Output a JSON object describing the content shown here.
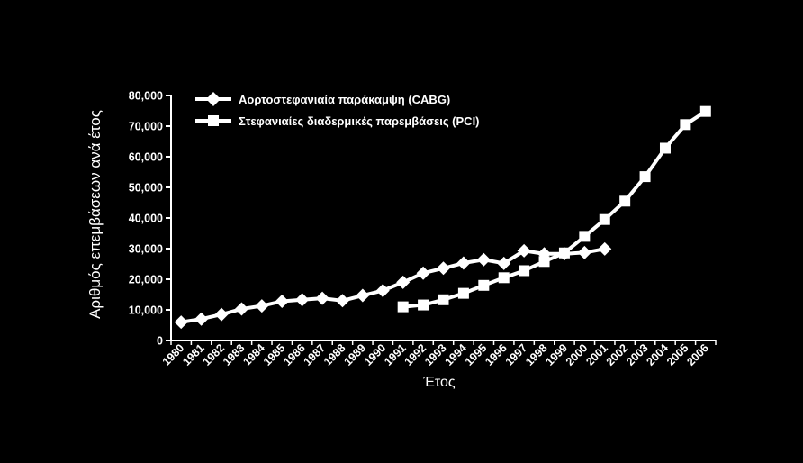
{
  "chart_data": {
    "type": "line",
    "title": "",
    "xlabel": "Έτος",
    "ylabel": "Αριθμός επεμβάσεων ανά έτος",
    "ylim": [
      0,
      80000
    ],
    "yticks": [
      "0",
      "10,000",
      "20,000",
      "30,000",
      "40,000",
      "50,000",
      "60,000",
      "70,000",
      "80,000"
    ],
    "x": [
      "1980",
      "1981",
      "1982",
      "1983",
      "1984",
      "1985",
      "1986",
      "1987",
      "1988",
      "1989",
      "1990",
      "1991",
      "1992",
      "1993",
      "1994",
      "1995",
      "1996",
      "1997",
      "1998",
      "1999",
      "2000",
      "2001",
      "2002",
      "2003",
      "2004",
      "2005",
      "2006"
    ],
    "legend_position": "top-left",
    "grid": false,
    "colors": {
      "background": "#000000",
      "foreground": "#ffffff"
    },
    "series": [
      {
        "name": "Αορτοστεφανιαία παράκαμψη (CABG)",
        "marker": "diamond",
        "points": [
          [
            "1980",
            6000
          ],
          [
            "1981",
            7000
          ],
          [
            "1982",
            8500
          ],
          [
            "1983",
            10300
          ],
          [
            "1984",
            11300
          ],
          [
            "1985",
            12800
          ],
          [
            "1986",
            13300
          ],
          [
            "1987",
            13800
          ],
          [
            "1988",
            13000
          ],
          [
            "1989",
            14700
          ],
          [
            "1990",
            16300
          ],
          [
            "1991",
            19000
          ],
          [
            "1992",
            22000
          ],
          [
            "1993",
            23600
          ],
          [
            "1994",
            25300
          ],
          [
            "1995",
            26400
          ],
          [
            "1996",
            25200
          ],
          [
            "1997",
            29300
          ],
          [
            "1998",
            28300
          ],
          [
            "1999",
            28300
          ],
          [
            "2000",
            28700
          ],
          [
            "2001",
            29900
          ]
        ]
      },
      {
        "name": "Στεφανιαίες διαδερμικές παρεμβάσεις (PCI)",
        "marker": "square",
        "points": [
          [
            "1991",
            11000
          ],
          [
            "1992",
            11600
          ],
          [
            "1993",
            13300
          ],
          [
            "1994",
            15400
          ],
          [
            "1995",
            18000
          ],
          [
            "1996",
            20500
          ],
          [
            "1997",
            22800
          ],
          [
            "1998",
            25800
          ],
          [
            "1999",
            28600
          ],
          [
            "2000",
            34000
          ],
          [
            "2001",
            39500
          ],
          [
            "2002",
            45500
          ],
          [
            "2003",
            53500
          ],
          [
            "2004",
            62800
          ],
          [
            "2005",
            70500
          ],
          [
            "2006",
            74800
          ]
        ]
      }
    ]
  }
}
